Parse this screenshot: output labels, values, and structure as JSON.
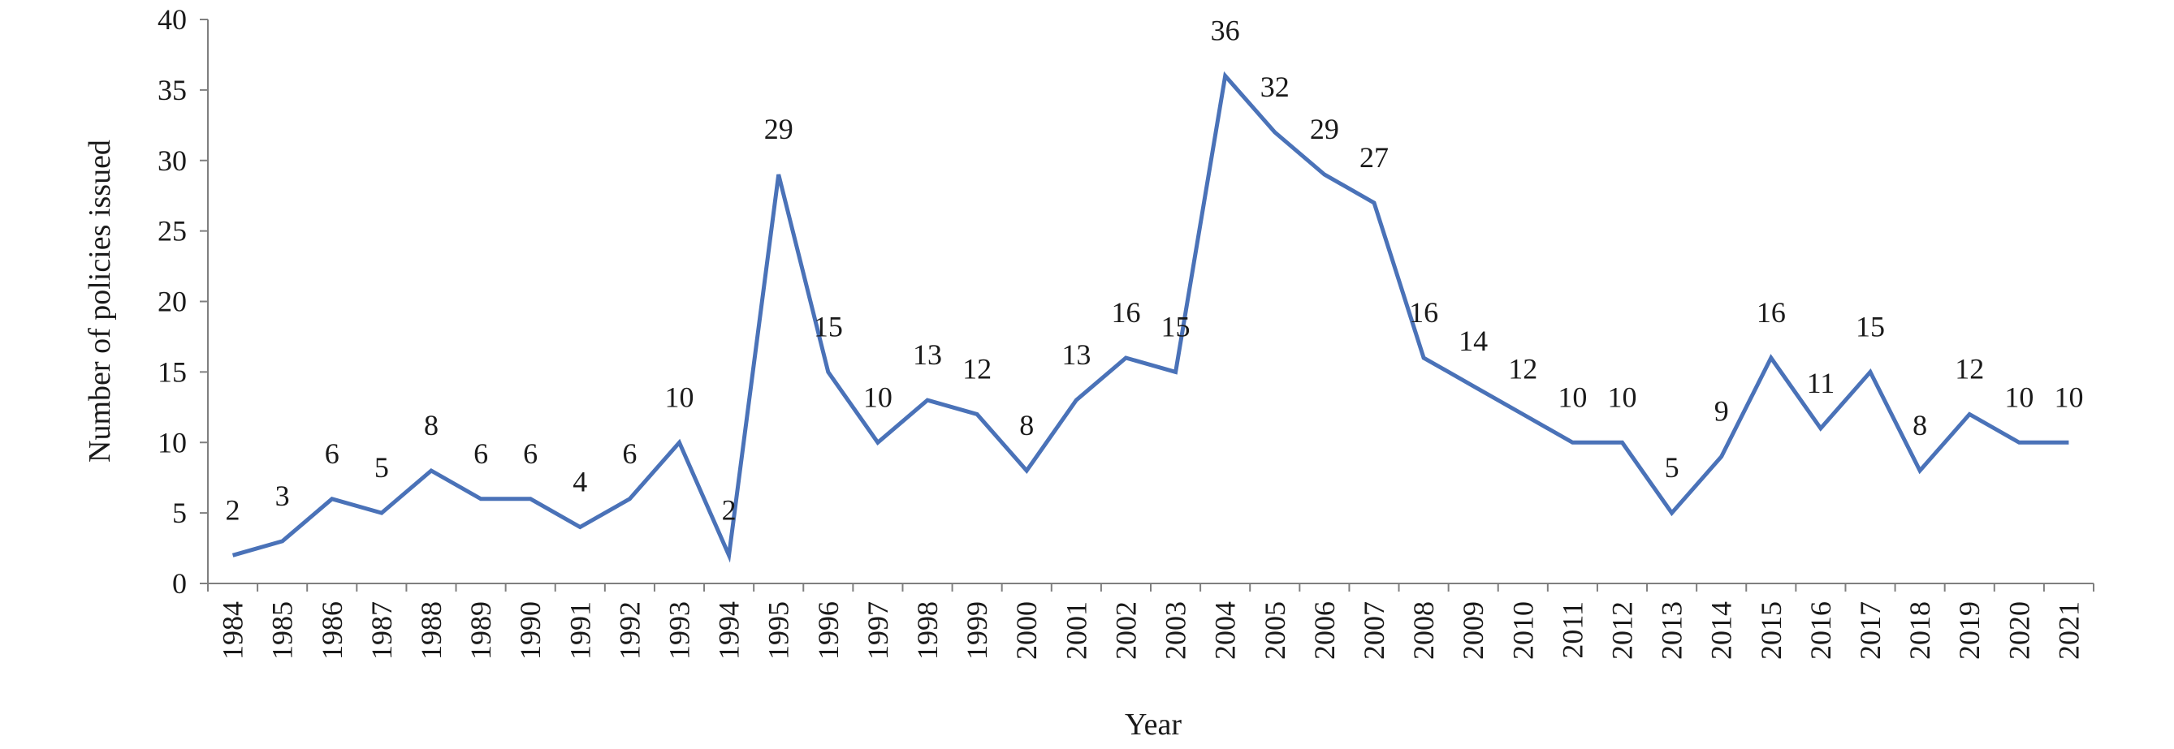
{
  "chart_data": {
    "type": "line",
    "title": "",
    "xlabel": "Year",
    "ylabel": "Number of policies issued",
    "ylim": [
      0,
      40
    ],
    "y_ticks": [
      0,
      5,
      10,
      15,
      20,
      25,
      30,
      35,
      40
    ],
    "grid": false,
    "legend": "none",
    "categories": [
      "1984",
      "1985",
      "1986",
      "1987",
      "1988",
      "1989",
      "1990",
      "1991",
      "1992",
      "1993",
      "1994",
      "1995",
      "1996",
      "1997",
      "1998",
      "1999",
      "2000",
      "2001",
      "2002",
      "2003",
      "2004",
      "2005",
      "2006",
      "2007",
      "2008",
      "2009",
      "2010",
      "2011",
      "2012",
      "2013",
      "2014",
      "2015",
      "2016",
      "2017",
      "2018",
      "2019",
      "2020",
      "2021"
    ],
    "series": [
      {
        "values": [
          2,
          3,
          6,
          5,
          8,
          6,
          6,
          4,
          6,
          10,
          2,
          29,
          15,
          10,
          13,
          12,
          8,
          13,
          16,
          15,
          36,
          32,
          29,
          27,
          16,
          14,
          12,
          10,
          10,
          5,
          9,
          16,
          11,
          15,
          8,
          12,
          10,
          10
        ],
        "color": "#4a72b8"
      }
    ],
    "data_labels": [
      "2",
      "3",
      "6",
      "5",
      "8",
      "6",
      "6",
      "4",
      "6",
      "10",
      "2",
      "29",
      "15",
      "10",
      "13",
      "12",
      "8",
      "13",
      "16",
      "15",
      "36",
      "32",
      "29",
      "27",
      "16",
      "14",
      "12",
      "10",
      "10",
      "5",
      "9",
      "16",
      "11",
      "15",
      "8",
      "12",
      "10",
      "10"
    ]
  }
}
